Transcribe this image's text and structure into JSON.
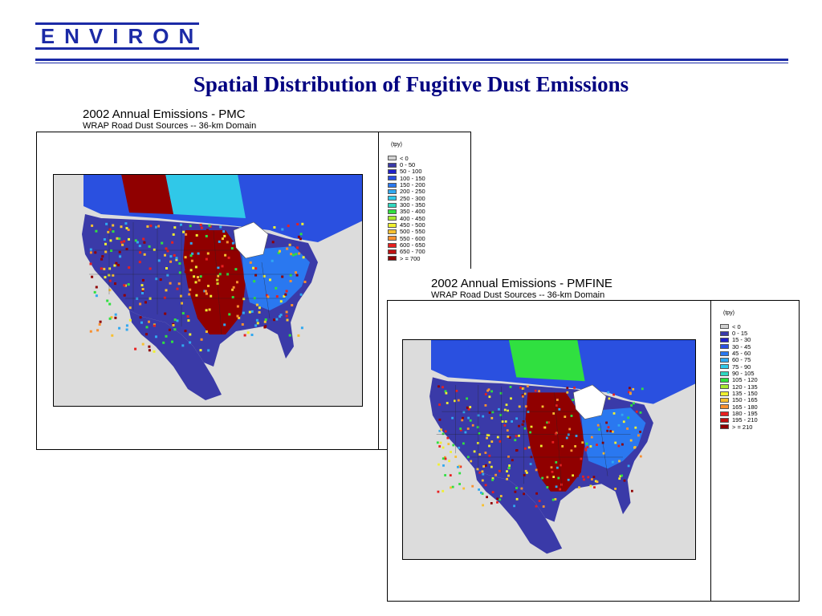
{
  "logo": {
    "text": "ENVIRON"
  },
  "slide": {
    "title": "Spatial Distribution of Fugitive Dust Emissions"
  },
  "maps": [
    {
      "title": "2002 Annual Emissions  - PMC",
      "subtitle": "WRAP Road Dust Sources -- 36-km Domain",
      "legend_unit": "(tpy)",
      "legend": [
        {
          "label": "< 0",
          "color": "#d0d0d0"
        },
        {
          "label": "0 - 50",
          "color": "#3a3aa8"
        },
        {
          "label": "50 - 100",
          "color": "#2020c8"
        },
        {
          "label": "100 - 150",
          "color": "#2a50e0"
        },
        {
          "label": "150 - 200",
          "color": "#2a78f0"
        },
        {
          "label": "200 - 250",
          "color": "#30a8f0"
        },
        {
          "label": "250 - 300",
          "color": "#30c8e8"
        },
        {
          "label": "300 - 350",
          "color": "#30d8c0"
        },
        {
          "label": "350 - 400",
          "color": "#30e040"
        },
        {
          "label": "400 - 450",
          "color": "#a8e830"
        },
        {
          "label": "450 - 500",
          "color": "#f0f030"
        },
        {
          "label": "500 - 550",
          "color": "#f8c030"
        },
        {
          "label": "550 - 600",
          "color": "#f89030"
        },
        {
          "label": "600 - 650",
          "color": "#e82020"
        },
        {
          "label": "650 - 700",
          "color": "#c01010"
        },
        {
          "label": "> = 700",
          "color": "#900000"
        }
      ]
    },
    {
      "title": "2002 Annual Emissions  - PMFINE",
      "subtitle": "WRAP Road Dust Sources -- 36-km Domain",
      "legend_unit": "(tpy)",
      "legend": [
        {
          "label": "< 0",
          "color": "#d0d0d0"
        },
        {
          "label": "0 - 15",
          "color": "#3a3aa8"
        },
        {
          "label": "15 - 30",
          "color": "#2020c8"
        },
        {
          "label": "30 - 45",
          "color": "#2a50e0"
        },
        {
          "label": "45 - 60",
          "color": "#2a78f0"
        },
        {
          "label": "60 - 75",
          "color": "#30a8f0"
        },
        {
          "label": "75 - 90",
          "color": "#30c8e8"
        },
        {
          "label": "90 - 105",
          "color": "#30d8c0"
        },
        {
          "label": "105 - 120",
          "color": "#30e040"
        },
        {
          "label": "120 - 135",
          "color": "#a8e830"
        },
        {
          "label": "135 - 150",
          "color": "#f0f030"
        },
        {
          "label": "150 - 165",
          "color": "#f8c030"
        },
        {
          "label": "165 - 180",
          "color": "#f89030"
        },
        {
          "label": "180 - 195",
          "color": "#e82020"
        },
        {
          "label": "195 - 210",
          "color": "#c01010"
        },
        {
          "label": "> = 210",
          "color": "#900000"
        }
      ]
    }
  ]
}
